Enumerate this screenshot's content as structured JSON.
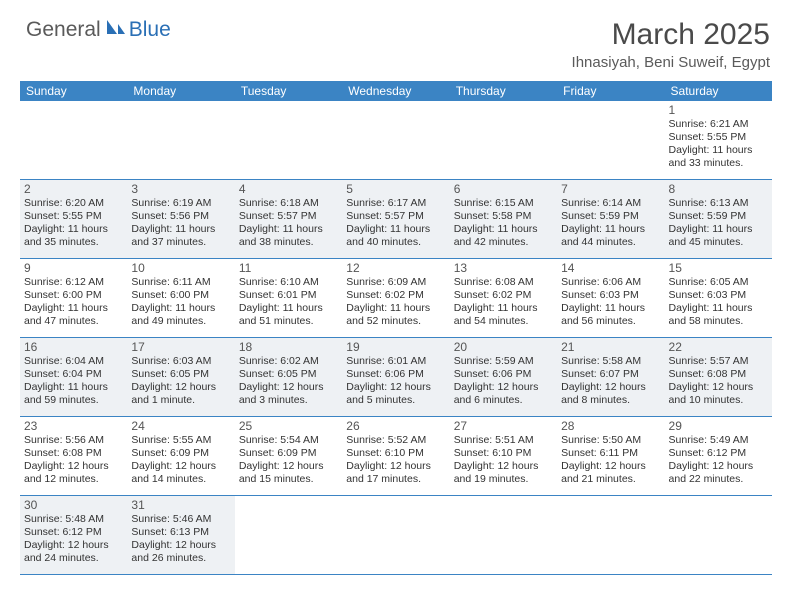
{
  "logo": {
    "general": "General",
    "blue": "Blue"
  },
  "title": "March 2025",
  "location": "Ihnasiyah, Beni Suweif, Egypt",
  "colors": {
    "header_bg": "#3b84c4",
    "header_text": "#ffffff",
    "shaded_bg": "#eef1f4",
    "border": "#3b84c4",
    "logo_gray": "#5a5a5a",
    "logo_blue": "#2a6fb5",
    "title_gray": "#4a4a4a"
  },
  "day_headers": [
    "Sunday",
    "Monday",
    "Tuesday",
    "Wednesday",
    "Thursday",
    "Friday",
    "Saturday"
  ],
  "weeks": [
    [
      {
        "empty": true
      },
      {
        "empty": true
      },
      {
        "empty": true
      },
      {
        "empty": true
      },
      {
        "empty": true
      },
      {
        "empty": true
      },
      {
        "day": "1",
        "sunrise": "Sunrise: 6:21 AM",
        "sunset": "Sunset: 5:55 PM",
        "daylight1": "Daylight: 11 hours",
        "daylight2": "and 33 minutes."
      }
    ],
    [
      {
        "day": "2",
        "shaded": true,
        "sunrise": "Sunrise: 6:20 AM",
        "sunset": "Sunset: 5:55 PM",
        "daylight1": "Daylight: 11 hours",
        "daylight2": "and 35 minutes."
      },
      {
        "day": "3",
        "shaded": true,
        "sunrise": "Sunrise: 6:19 AM",
        "sunset": "Sunset: 5:56 PM",
        "daylight1": "Daylight: 11 hours",
        "daylight2": "and 37 minutes."
      },
      {
        "day": "4",
        "shaded": true,
        "sunrise": "Sunrise: 6:18 AM",
        "sunset": "Sunset: 5:57 PM",
        "daylight1": "Daylight: 11 hours",
        "daylight2": "and 38 minutes."
      },
      {
        "day": "5",
        "shaded": true,
        "sunrise": "Sunrise: 6:17 AM",
        "sunset": "Sunset: 5:57 PM",
        "daylight1": "Daylight: 11 hours",
        "daylight2": "and 40 minutes."
      },
      {
        "day": "6",
        "shaded": true,
        "sunrise": "Sunrise: 6:15 AM",
        "sunset": "Sunset: 5:58 PM",
        "daylight1": "Daylight: 11 hours",
        "daylight2": "and 42 minutes."
      },
      {
        "day": "7",
        "shaded": true,
        "sunrise": "Sunrise: 6:14 AM",
        "sunset": "Sunset: 5:59 PM",
        "daylight1": "Daylight: 11 hours",
        "daylight2": "and 44 minutes."
      },
      {
        "day": "8",
        "shaded": true,
        "sunrise": "Sunrise: 6:13 AM",
        "sunset": "Sunset: 5:59 PM",
        "daylight1": "Daylight: 11 hours",
        "daylight2": "and 45 minutes."
      }
    ],
    [
      {
        "day": "9",
        "sunrise": "Sunrise: 6:12 AM",
        "sunset": "Sunset: 6:00 PM",
        "daylight1": "Daylight: 11 hours",
        "daylight2": "and 47 minutes."
      },
      {
        "day": "10",
        "sunrise": "Sunrise: 6:11 AM",
        "sunset": "Sunset: 6:00 PM",
        "daylight1": "Daylight: 11 hours",
        "daylight2": "and 49 minutes."
      },
      {
        "day": "11",
        "sunrise": "Sunrise: 6:10 AM",
        "sunset": "Sunset: 6:01 PM",
        "daylight1": "Daylight: 11 hours",
        "daylight2": "and 51 minutes."
      },
      {
        "day": "12",
        "sunrise": "Sunrise: 6:09 AM",
        "sunset": "Sunset: 6:02 PM",
        "daylight1": "Daylight: 11 hours",
        "daylight2": "and 52 minutes."
      },
      {
        "day": "13",
        "sunrise": "Sunrise: 6:08 AM",
        "sunset": "Sunset: 6:02 PM",
        "daylight1": "Daylight: 11 hours",
        "daylight2": "and 54 minutes."
      },
      {
        "day": "14",
        "sunrise": "Sunrise: 6:06 AM",
        "sunset": "Sunset: 6:03 PM",
        "daylight1": "Daylight: 11 hours",
        "daylight2": "and 56 minutes."
      },
      {
        "day": "15",
        "sunrise": "Sunrise: 6:05 AM",
        "sunset": "Sunset: 6:03 PM",
        "daylight1": "Daylight: 11 hours",
        "daylight2": "and 58 minutes."
      }
    ],
    [
      {
        "day": "16",
        "shaded": true,
        "sunrise": "Sunrise: 6:04 AM",
        "sunset": "Sunset: 6:04 PM",
        "daylight1": "Daylight: 11 hours",
        "daylight2": "and 59 minutes."
      },
      {
        "day": "17",
        "shaded": true,
        "sunrise": "Sunrise: 6:03 AM",
        "sunset": "Sunset: 6:05 PM",
        "daylight1": "Daylight: 12 hours",
        "daylight2": "and 1 minute."
      },
      {
        "day": "18",
        "shaded": true,
        "sunrise": "Sunrise: 6:02 AM",
        "sunset": "Sunset: 6:05 PM",
        "daylight1": "Daylight: 12 hours",
        "daylight2": "and 3 minutes."
      },
      {
        "day": "19",
        "shaded": true,
        "sunrise": "Sunrise: 6:01 AM",
        "sunset": "Sunset: 6:06 PM",
        "daylight1": "Daylight: 12 hours",
        "daylight2": "and 5 minutes."
      },
      {
        "day": "20",
        "shaded": true,
        "sunrise": "Sunrise: 5:59 AM",
        "sunset": "Sunset: 6:06 PM",
        "daylight1": "Daylight: 12 hours",
        "daylight2": "and 6 minutes."
      },
      {
        "day": "21",
        "shaded": true,
        "sunrise": "Sunrise: 5:58 AM",
        "sunset": "Sunset: 6:07 PM",
        "daylight1": "Daylight: 12 hours",
        "daylight2": "and 8 minutes."
      },
      {
        "day": "22",
        "shaded": true,
        "sunrise": "Sunrise: 5:57 AM",
        "sunset": "Sunset: 6:08 PM",
        "daylight1": "Daylight: 12 hours",
        "daylight2": "and 10 minutes."
      }
    ],
    [
      {
        "day": "23",
        "sunrise": "Sunrise: 5:56 AM",
        "sunset": "Sunset: 6:08 PM",
        "daylight1": "Daylight: 12 hours",
        "daylight2": "and 12 minutes."
      },
      {
        "day": "24",
        "sunrise": "Sunrise: 5:55 AM",
        "sunset": "Sunset: 6:09 PM",
        "daylight1": "Daylight: 12 hours",
        "daylight2": "and 14 minutes."
      },
      {
        "day": "25",
        "sunrise": "Sunrise: 5:54 AM",
        "sunset": "Sunset: 6:09 PM",
        "daylight1": "Daylight: 12 hours",
        "daylight2": "and 15 minutes."
      },
      {
        "day": "26",
        "sunrise": "Sunrise: 5:52 AM",
        "sunset": "Sunset: 6:10 PM",
        "daylight1": "Daylight: 12 hours",
        "daylight2": "and 17 minutes."
      },
      {
        "day": "27",
        "sunrise": "Sunrise: 5:51 AM",
        "sunset": "Sunset: 6:10 PM",
        "daylight1": "Daylight: 12 hours",
        "daylight2": "and 19 minutes."
      },
      {
        "day": "28",
        "sunrise": "Sunrise: 5:50 AM",
        "sunset": "Sunset: 6:11 PM",
        "daylight1": "Daylight: 12 hours",
        "daylight2": "and 21 minutes."
      },
      {
        "day": "29",
        "sunrise": "Sunrise: 5:49 AM",
        "sunset": "Sunset: 6:12 PM",
        "daylight1": "Daylight: 12 hours",
        "daylight2": "and 22 minutes."
      }
    ],
    [
      {
        "day": "30",
        "shaded": true,
        "sunrise": "Sunrise: 5:48 AM",
        "sunset": "Sunset: 6:12 PM",
        "daylight1": "Daylight: 12 hours",
        "daylight2": "and 24 minutes."
      },
      {
        "day": "31",
        "shaded": true,
        "sunrise": "Sunrise: 5:46 AM",
        "sunset": "Sunset: 6:13 PM",
        "daylight1": "Daylight: 12 hours",
        "daylight2": "and 26 minutes."
      },
      {
        "empty": true
      },
      {
        "empty": true
      },
      {
        "empty": true
      },
      {
        "empty": true
      },
      {
        "empty": true
      }
    ]
  ]
}
